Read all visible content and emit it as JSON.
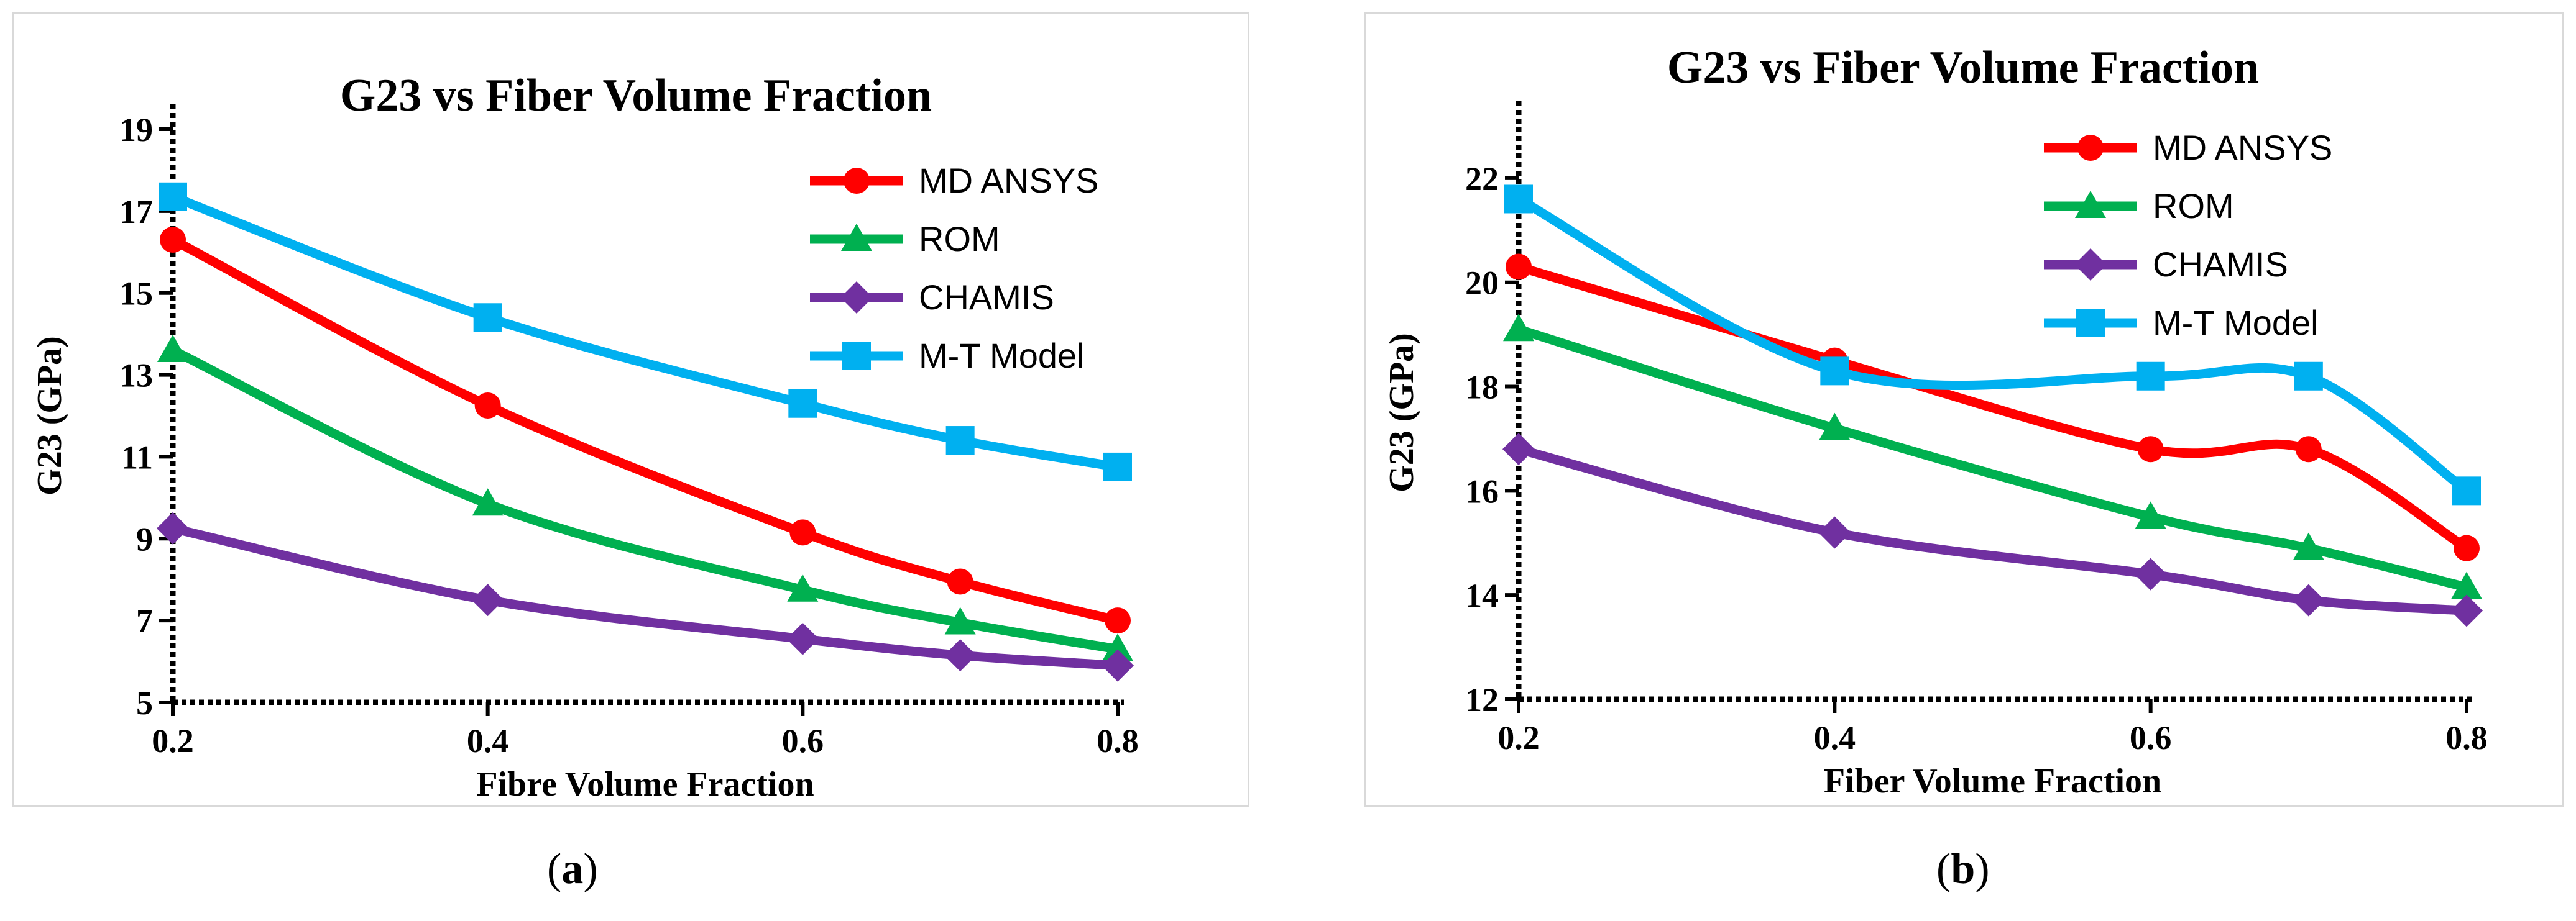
{
  "chart_data": [
    {
      "type": "line",
      "title": "G23 vs Fiber Volume Fraction",
      "xlabel": "Fibre Volume Fraction",
      "ylabel": "G23 (GPa)",
      "x": [
        0.2,
        0.4,
        0.6,
        0.7,
        0.8
      ],
      "xlim": [
        0.2,
        0.8
      ],
      "ylim": [
        5,
        19
      ],
      "x_ticks": [
        "0.2",
        "0.4",
        "0.6",
        "0.8"
      ],
      "x_tick_values": [
        0.2,
        0.4,
        0.6,
        0.8
      ],
      "y_ticks": [
        "5",
        "7",
        "9",
        "11",
        "13",
        "15",
        "17",
        "19"
      ],
      "y_tick_values": [
        5,
        7,
        9,
        11,
        13,
        15,
        17,
        19
      ],
      "legend_position": "top-right",
      "series": [
        {
          "name": "MD ANSYS",
          "values": [
            16.3,
            12.25,
            9.15,
            7.95,
            7.0
          ],
          "color": "#ff0000",
          "marker": "circle"
        },
        {
          "name": "ROM",
          "values": [
            13.6,
            9.85,
            7.75,
            6.95,
            6.3
          ],
          "color": "#00b050",
          "marker": "triangle"
        },
        {
          "name": "CHAMIS",
          "values": [
            9.25,
            7.5,
            6.55,
            6.15,
            5.9
          ],
          "color": "#7030a0",
          "marker": "diamond"
        },
        {
          "name": "M-T Model",
          "values": [
            17.35,
            14.4,
            12.3,
            11.4,
            10.75
          ],
          "color": "#00b0f0",
          "marker": "square"
        }
      ],
      "caption": "(a)",
      "caption_letter": "a"
    },
    {
      "type": "line",
      "title": "G23 vs Fiber Volume Fraction",
      "xlabel": "Fiber Volume Fraction",
      "ylabel": "G23 (GPa)",
      "x": [
        0.2,
        0.4,
        0.6,
        0.7,
        0.8
      ],
      "xlim": [
        0.2,
        0.8
      ],
      "ylim": [
        12,
        23
      ],
      "x_ticks": [
        "0.2",
        "0.4",
        "0.6",
        "0.8"
      ],
      "x_tick_values": [
        0.2,
        0.4,
        0.6,
        0.8
      ],
      "y_ticks": [
        "12",
        "14",
        "16",
        "18",
        "20",
        "22"
      ],
      "y_tick_values": [
        12,
        14,
        16,
        18,
        20,
        22
      ],
      "legend_position": "top-right",
      "series": [
        {
          "name": "MD ANSYS",
          "values": [
            20.3,
            18.5,
            16.8,
            16.8,
            14.9
          ],
          "color": "#ff0000",
          "marker": "circle"
        },
        {
          "name": "ROM",
          "values": [
            19.1,
            17.2,
            15.5,
            14.9,
            14.15
          ],
          "color": "#00b050",
          "marker": "triangle"
        },
        {
          "name": "CHAMIS",
          "values": [
            16.8,
            15.2,
            14.4,
            13.9,
            13.7
          ],
          "color": "#7030a0",
          "marker": "diamond"
        },
        {
          "name": "M-T Model",
          "values": [
            21.6,
            18.3,
            18.2,
            18.2,
            16.0
          ],
          "color": "#00b0f0",
          "marker": "square"
        }
      ],
      "caption": "(b)",
      "caption_letter": "b"
    }
  ]
}
